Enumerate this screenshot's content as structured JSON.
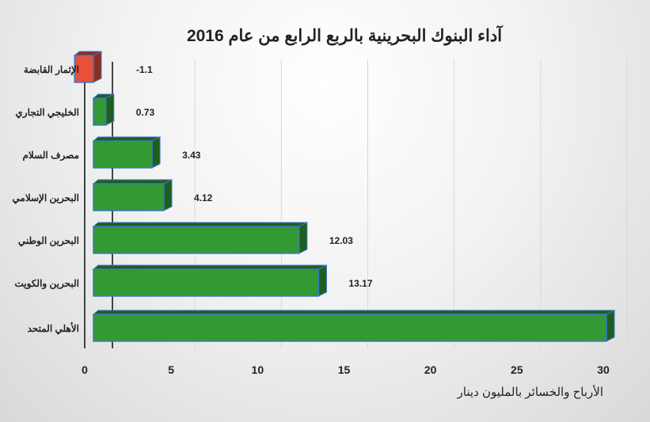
{
  "chart_data": {
    "type": "bar",
    "orientation": "horizontal",
    "title": "آداء البنوك البحرينية بالربع الرابع من عام 2016",
    "xlabel": "الأرباح والخسائر بالمليون دينار",
    "ylabel": "",
    "categories": [
      "الإثمار القابضة",
      "الخليجي التجاري",
      "مصرف السلام",
      "البحرين الإسلامي",
      "البحرين الوطني",
      "البحرين والكويت",
      "الأهلي المتحد"
    ],
    "values": [
      -1.1,
      0.73,
      3.43,
      4.12,
      12.03,
      13.17,
      30
    ],
    "data_labels": [
      "-1.1",
      "0.73",
      "3.43",
      "4.12",
      "12.03",
      "13.17",
      ""
    ],
    "xlim": [
      0,
      30
    ],
    "xticks": [
      "0",
      "5",
      "10",
      "15",
      "20",
      "25",
      "30"
    ],
    "grid": true,
    "colors": {
      "positive": "#339933",
      "positive_side": "#1f5e1f",
      "negative": "#e8503a",
      "negative_side": "#8b2e22",
      "edge": "#3a78c9"
    }
  }
}
